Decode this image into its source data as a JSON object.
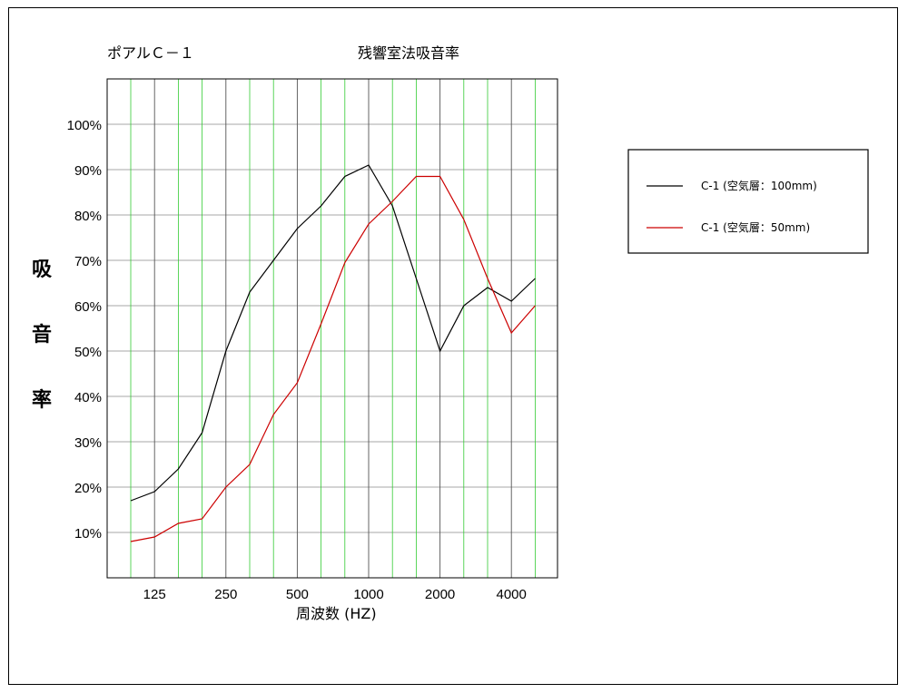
{
  "chart_data": {
    "type": "line",
    "title_left": "ポアルＣ－１",
    "title": "残響室法吸音率",
    "xlabel": "周波数 (HZ)",
    "ylabel": "吸音率",
    "x_frequencies": [
      100,
      125,
      160,
      200,
      250,
      315,
      400,
      500,
      630,
      800,
      1000,
      1250,
      1600,
      2000,
      2500,
      3150,
      4000,
      5000
    ],
    "x_tick_labels": [
      "125",
      "250",
      "500",
      "1000",
      "2000",
      "4000"
    ],
    "x_tick_frequencies": [
      125,
      250,
      500,
      1000,
      2000,
      4000
    ],
    "y_tick_labels": [
      "10%",
      "20%",
      "30%",
      "40%",
      "50%",
      "60%",
      "70%",
      "80%",
      "90%",
      "100%"
    ],
    "ylim": [
      0,
      110
    ],
    "grid": true,
    "legend_position": "right",
    "series": [
      {
        "name": "C-1 (空気層：100mm)",
        "color": "#000000",
        "values": [
          17,
          19,
          24,
          32,
          50,
          63,
          70,
          77,
          82,
          88.5,
          91,
          82,
          66,
          50,
          60,
          64,
          61,
          66
        ]
      },
      {
        "name": "C-1 (空気層：50mm)",
        "color": "#cc0000",
        "values": [
          8,
          9,
          12,
          13,
          20,
          25,
          36,
          43,
          56,
          69.5,
          78,
          83,
          88.5,
          88.5,
          79,
          66,
          54,
          60
        ]
      }
    ]
  }
}
